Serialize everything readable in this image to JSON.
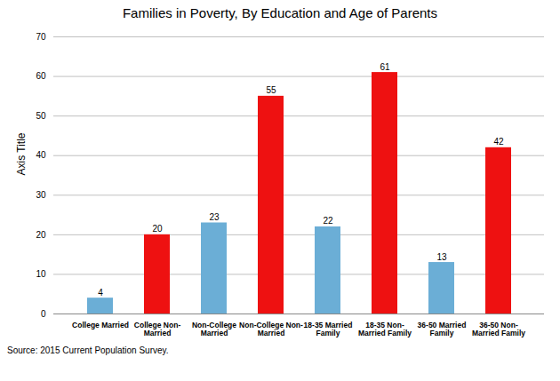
{
  "chart_data": {
    "type": "bar",
    "title": "Families in Poverty, By Education and Age of Parents",
    "categories": [
      "College Married",
      "College Non-\nMarried",
      "Non-College\nMarried",
      "Non-College Non-\nMarried",
      "18-35 Married\nFamily",
      "18-35 Non-\nMarried Family",
      "36-50 Married\nFamily",
      "36-50 Non-\nMarried Family"
    ],
    "values": [
      4,
      20,
      23,
      55,
      22,
      61,
      13,
      42
    ],
    "colors": [
      "#6baed6",
      "#ee1111",
      "#6baed6",
      "#ee1111",
      "#6baed6",
      "#ee1111",
      "#6baed6",
      "#ee1111"
    ],
    "ylabel": "Axis Title",
    "ylim": [
      0,
      70
    ],
    "yticks": [
      0,
      10,
      20,
      30,
      40,
      50,
      60,
      70
    ],
    "grid": true,
    "data_labels": true,
    "source": "Source: 2015 Current Population Survey."
  }
}
